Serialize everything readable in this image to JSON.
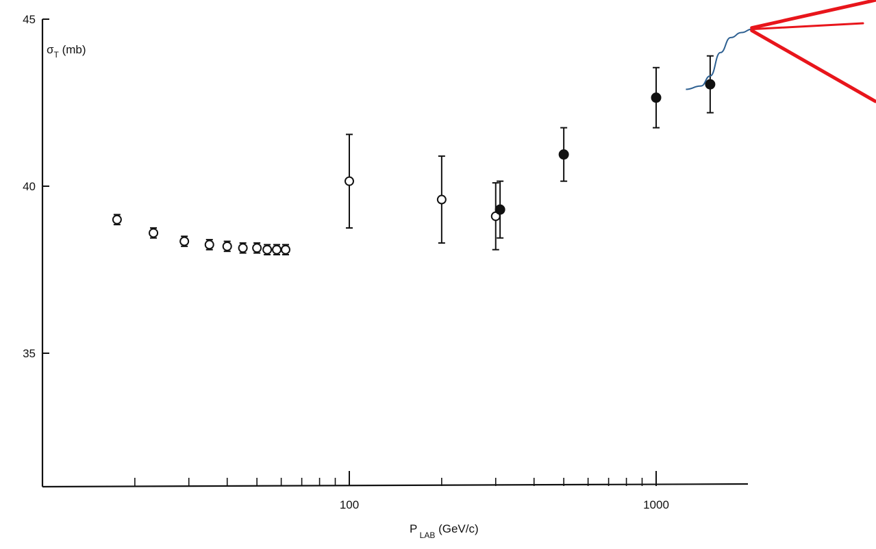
{
  "chart_data": {
    "type": "scatter",
    "title": "",
    "ylabel": {
      "symbol": "σ",
      "subscript": "T",
      "unit": "(mb)"
    },
    "xlabel": {
      "symbol": "P",
      "subscript": "LAB",
      "unit": "(GeV/c)"
    },
    "x_scale": "log",
    "xlim": [
      10,
      2500
    ],
    "ylim": [
      30.5,
      45
    ],
    "y_ticks": [
      {
        "value": 45,
        "label": "45"
      },
      {
        "value": 40,
        "label": "40"
      },
      {
        "value": 35,
        "label": "35"
      }
    ],
    "x_ticks": [
      {
        "value": 100,
        "label": "100"
      },
      {
        "value": 1000,
        "label": "1000"
      }
    ],
    "x_minor_ticks": [
      20,
      30,
      40,
      50,
      60,
      70,
      80,
      90,
      200,
      300,
      400,
      500,
      600,
      700,
      800,
      900
    ],
    "series": [
      {
        "marker": "open-circle",
        "points": [
          {
            "x": 17.5,
            "y": 39.0,
            "err": 0.15
          },
          {
            "x": 23,
            "y": 38.6,
            "err": 0.15
          },
          {
            "x": 29,
            "y": 38.35,
            "err": 0.15
          },
          {
            "x": 35,
            "y": 38.25,
            "err": 0.15
          },
          {
            "x": 40,
            "y": 38.2,
            "err": 0.15
          },
          {
            "x": 45,
            "y": 38.15,
            "err": 0.15
          },
          {
            "x": 50,
            "y": 38.15,
            "err": 0.15
          },
          {
            "x": 54,
            "y": 38.1,
            "err": 0.15
          },
          {
            "x": 58,
            "y": 38.1,
            "err": 0.15
          },
          {
            "x": 62,
            "y": 38.1,
            "err": 0.15
          },
          {
            "x": 100,
            "y": 40.15,
            "err": 1.4
          },
          {
            "x": 200,
            "y": 39.6,
            "err": 1.3
          },
          {
            "x": 300,
            "y": 39.1,
            "err": 1.0
          }
        ]
      },
      {
        "marker": "filled-circle",
        "points": [
          {
            "x": 310,
            "y": 39.3,
            "err": 0.85
          },
          {
            "x": 500,
            "y": 40.95,
            "err": 0.8
          },
          {
            "x": 1000,
            "y": 42.65,
            "err": 0.9
          },
          {
            "x": 1500,
            "y": 43.05,
            "err": 0.85
          }
        ]
      }
    ],
    "annotations": {
      "curve_color": "#2c5f91",
      "curve_points": [
        {
          "x": 1250,
          "y": 42.9
        },
        {
          "x": 1400,
          "y": 43.0
        },
        {
          "x": 1500,
          "y": 43.3
        },
        {
          "x": 1620,
          "y": 44.0
        },
        {
          "x": 1750,
          "y": 44.45
        },
        {
          "x": 1900,
          "y": 44.6
        },
        {
          "x": 2050,
          "y": 44.7
        }
      ],
      "cone_color": "#e8151b",
      "cone_apex": {
        "x": 2050,
        "y": 44.7
      }
    }
  }
}
